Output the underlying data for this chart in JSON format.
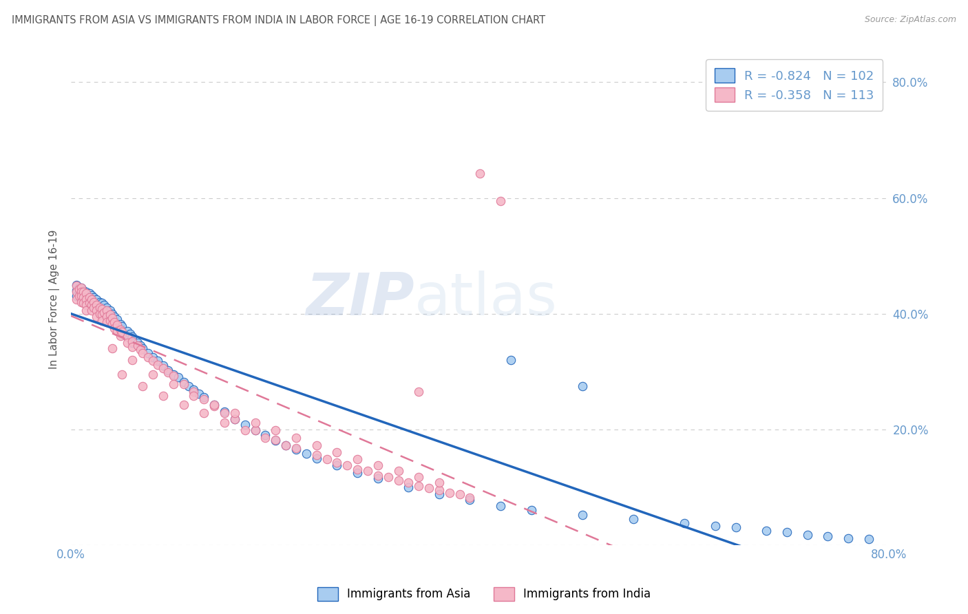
{
  "title": "IMMIGRANTS FROM ASIA VS IMMIGRANTS FROM INDIA IN LABOR FORCE | AGE 16-19 CORRELATION CHART",
  "source": "Source: ZipAtlas.com",
  "ylabel": "In Labor Force | Age 16-19",
  "xlim": [
    0.0,
    0.8
  ],
  "ylim": [
    0.0,
    0.85
  ],
  "xticks": [
    0.0,
    0.1,
    0.2,
    0.3,
    0.4,
    0.5,
    0.6,
    0.7,
    0.8
  ],
  "yticks": [
    0.0,
    0.2,
    0.4,
    0.6,
    0.8
  ],
  "color_asia": "#A8CCF0",
  "color_india": "#F5B8C8",
  "line_color_asia": "#2266BB",
  "line_color_india": "#E07898",
  "R_asia": -0.824,
  "N_asia": 102,
  "R_india": -0.358,
  "N_india": 113,
  "legend_label_asia": "Immigrants from Asia",
  "legend_label_india": "Immigrants from India",
  "watermark_zip": "ZIP",
  "watermark_atlas": "atlas",
  "background_color": "#FFFFFF",
  "grid_color": "#CCCCCC",
  "title_color": "#555555",
  "axis_color": "#6699CC",
  "axis_label_color": "#555555",
  "scatter_asia_x": [
    0.005,
    0.005,
    0.005,
    0.008,
    0.008,
    0.01,
    0.01,
    0.01,
    0.01,
    0.012,
    0.012,
    0.012,
    0.015,
    0.015,
    0.015,
    0.015,
    0.018,
    0.018,
    0.018,
    0.02,
    0.02,
    0.02,
    0.022,
    0.022,
    0.022,
    0.025,
    0.025,
    0.025,
    0.028,
    0.028,
    0.03,
    0.03,
    0.03,
    0.032,
    0.032,
    0.035,
    0.035,
    0.035,
    0.038,
    0.038,
    0.04,
    0.04,
    0.04,
    0.042,
    0.042,
    0.045,
    0.045,
    0.048,
    0.048,
    0.05,
    0.055,
    0.055,
    0.058,
    0.06,
    0.06,
    0.065,
    0.068,
    0.07,
    0.075,
    0.08,
    0.085,
    0.09,
    0.095,
    0.1,
    0.105,
    0.11,
    0.115,
    0.12,
    0.125,
    0.13,
    0.14,
    0.15,
    0.16,
    0.17,
    0.18,
    0.19,
    0.2,
    0.21,
    0.22,
    0.23,
    0.24,
    0.26,
    0.28,
    0.3,
    0.33,
    0.36,
    0.39,
    0.42,
    0.45,
    0.5,
    0.55,
    0.6,
    0.63,
    0.65,
    0.68,
    0.7,
    0.72,
    0.74,
    0.76,
    0.78,
    0.5,
    0.43
  ],
  "scatter_asia_y": [
    0.45,
    0.44,
    0.43,
    0.445,
    0.435,
    0.445,
    0.44,
    0.435,
    0.425,
    0.44,
    0.435,
    0.425,
    0.438,
    0.432,
    0.428,
    0.418,
    0.435,
    0.428,
    0.42,
    0.432,
    0.425,
    0.415,
    0.428,
    0.42,
    0.412,
    0.425,
    0.415,
    0.408,
    0.42,
    0.412,
    0.418,
    0.41,
    0.4,
    0.415,
    0.405,
    0.41,
    0.402,
    0.395,
    0.405,
    0.395,
    0.4,
    0.392,
    0.382,
    0.395,
    0.385,
    0.39,
    0.38,
    0.382,
    0.372,
    0.378,
    0.37,
    0.36,
    0.365,
    0.36,
    0.35,
    0.35,
    0.345,
    0.34,
    0.332,
    0.325,
    0.318,
    0.31,
    0.302,
    0.295,
    0.29,
    0.282,
    0.275,
    0.268,
    0.262,
    0.255,
    0.242,
    0.23,
    0.218,
    0.208,
    0.198,
    0.19,
    0.18,
    0.172,
    0.165,
    0.158,
    0.15,
    0.138,
    0.125,
    0.115,
    0.1,
    0.088,
    0.078,
    0.068,
    0.06,
    0.052,
    0.045,
    0.038,
    0.033,
    0.03,
    0.025,
    0.022,
    0.018,
    0.015,
    0.012,
    0.01,
    0.275,
    0.32
  ],
  "scatter_india_x": [
    0.005,
    0.005,
    0.005,
    0.008,
    0.008,
    0.01,
    0.01,
    0.01,
    0.01,
    0.012,
    0.012,
    0.012,
    0.015,
    0.015,
    0.015,
    0.015,
    0.018,
    0.018,
    0.02,
    0.02,
    0.02,
    0.022,
    0.022,
    0.025,
    0.025,
    0.025,
    0.028,
    0.028,
    0.03,
    0.03,
    0.03,
    0.032,
    0.035,
    0.035,
    0.035,
    0.038,
    0.038,
    0.04,
    0.04,
    0.042,
    0.042,
    0.045,
    0.045,
    0.048,
    0.048,
    0.05,
    0.055,
    0.055,
    0.06,
    0.06,
    0.065,
    0.068,
    0.07,
    0.075,
    0.08,
    0.085,
    0.09,
    0.095,
    0.1,
    0.11,
    0.12,
    0.13,
    0.14,
    0.15,
    0.16,
    0.18,
    0.2,
    0.22,
    0.24,
    0.26,
    0.28,
    0.3,
    0.32,
    0.34,
    0.36,
    0.38,
    0.04,
    0.06,
    0.08,
    0.1,
    0.12,
    0.14,
    0.16,
    0.18,
    0.2,
    0.22,
    0.24,
    0.26,
    0.28,
    0.3,
    0.32,
    0.34,
    0.36,
    0.05,
    0.07,
    0.09,
    0.11,
    0.13,
    0.15,
    0.17,
    0.19,
    0.21,
    0.25,
    0.27,
    0.29,
    0.31,
    0.33,
    0.35,
    0.37,
    0.39,
    0.4,
    0.42,
    0.34
  ],
  "scatter_india_y": [
    0.448,
    0.438,
    0.425,
    0.442,
    0.43,
    0.445,
    0.438,
    0.43,
    0.42,
    0.438,
    0.428,
    0.418,
    0.435,
    0.425,
    0.415,
    0.405,
    0.428,
    0.418,
    0.425,
    0.415,
    0.405,
    0.42,
    0.41,
    0.415,
    0.405,
    0.395,
    0.41,
    0.4,
    0.408,
    0.398,
    0.388,
    0.402,
    0.405,
    0.395,
    0.385,
    0.398,
    0.388,
    0.392,
    0.382,
    0.385,
    0.375,
    0.38,
    0.37,
    0.372,
    0.362,
    0.368,
    0.36,
    0.35,
    0.352,
    0.342,
    0.345,
    0.338,
    0.332,
    0.325,
    0.318,
    0.312,
    0.305,
    0.298,
    0.292,
    0.278,
    0.265,
    0.252,
    0.24,
    0.228,
    0.218,
    0.198,
    0.182,
    0.168,
    0.155,
    0.142,
    0.13,
    0.12,
    0.112,
    0.102,
    0.095,
    0.088,
    0.34,
    0.32,
    0.295,
    0.278,
    0.258,
    0.242,
    0.228,
    0.212,
    0.198,
    0.185,
    0.172,
    0.16,
    0.148,
    0.138,
    0.128,
    0.118,
    0.108,
    0.295,
    0.275,
    0.258,
    0.242,
    0.228,
    0.212,
    0.198,
    0.185,
    0.172,
    0.148,
    0.138,
    0.128,
    0.118,
    0.108,
    0.098,
    0.09,
    0.082,
    0.642,
    0.595,
    0.265
  ]
}
